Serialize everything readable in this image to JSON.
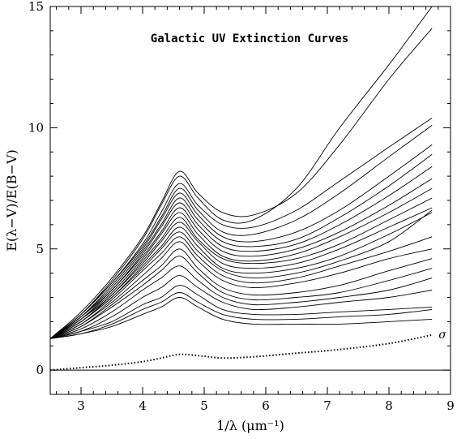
{
  "chart_data": {
    "type": "line",
    "title": "Galactic UV Extinction Curves",
    "xlabel": "1/λ (μm⁻¹)",
    "ylabel": "E(λ−V)/E(B−V)",
    "xlim": [
      2.5,
      9.0
    ],
    "ylim": [
      -1.0,
      15.0
    ],
    "x_ticks": [
      3,
      4,
      5,
      6,
      7,
      8,
      9
    ],
    "y_ticks": [
      0,
      5,
      10,
      15
    ],
    "grid": false,
    "legend": "none",
    "reference_line_y": 0,
    "x": [
      2.5,
      3.0,
      3.5,
      4.0,
      4.3,
      4.6,
      4.9,
      5.3,
      5.8,
      6.5,
      7.2,
      8.0,
      8.7
    ],
    "series": [
      {
        "values": [
          1.3,
          2.4,
          3.8,
          5.5,
          6.9,
          8.2,
          7.3,
          6.5,
          6.4,
          7.3,
          9.3,
          12.0,
          14.1
        ]
      },
      {
        "values": [
          1.3,
          2.3,
          3.7,
          5.4,
          6.8,
          8.0,
          7.1,
          6.2,
          6.2,
          7.5,
          10.0,
          12.6,
          15.0
        ]
      },
      {
        "values": [
          1.3,
          2.3,
          3.6,
          5.2,
          6.5,
          7.7,
          6.8,
          6.0,
          5.9,
          6.6,
          7.8,
          9.2,
          10.4
        ]
      },
      {
        "values": [
          1.3,
          2.3,
          3.6,
          5.1,
          6.3,
          7.5,
          6.6,
          5.7,
          5.6,
          6.2,
          7.3,
          8.8,
          10.1
        ]
      },
      {
        "values": [
          1.3,
          2.2,
          3.5,
          5.0,
          6.2,
          7.3,
          6.4,
          5.5,
          5.3,
          5.7,
          6.6,
          8.0,
          9.3
        ]
      },
      {
        "values": [
          1.3,
          2.2,
          3.4,
          4.9,
          6.0,
          7.1,
          6.2,
          5.3,
          5.1,
          5.4,
          6.3,
          7.6,
          8.9
        ]
      },
      {
        "values": [
          1.3,
          2.2,
          3.3,
          4.8,
          5.9,
          6.9,
          6.0,
          5.1,
          4.9,
          5.2,
          6.0,
          7.2,
          8.4
        ]
      },
      {
        "values": [
          1.3,
          2.1,
          3.3,
          4.7,
          5.7,
          6.7,
          5.8,
          4.9,
          4.7,
          5.0,
          5.7,
          6.8,
          7.9
        ]
      },
      {
        "values": [
          1.3,
          2.1,
          3.2,
          4.6,
          5.6,
          6.5,
          5.6,
          4.7,
          4.5,
          4.8,
          5.5,
          6.5,
          7.5
        ]
      },
      {
        "values": [
          1.3,
          2.1,
          3.1,
          4.5,
          5.4,
          6.3,
          5.4,
          4.6,
          4.4,
          4.6,
          5.2,
          6.2,
          7.1
        ]
      },
      {
        "values": [
          1.3,
          2.0,
          3.1,
          4.4,
          5.3,
          6.1,
          5.3,
          4.4,
          4.2,
          4.4,
          5.0,
          5.9,
          6.7
        ]
      },
      {
        "values": [
          1.3,
          2.0,
          3.0,
          4.3,
          5.1,
          5.9,
          5.1,
          4.2,
          4.0,
          4.2,
          4.7,
          5.6,
          6.5
        ]
      },
      {
        "values": [
          1.3,
          2.0,
          3.0,
          4.2,
          5.0,
          5.7,
          4.9,
          4.1,
          3.8,
          4.0,
          4.5,
          5.3,
          6.6
        ]
      },
      {
        "values": [
          1.3,
          1.9,
          2.9,
          4.1,
          4.8,
          5.5,
          4.7,
          3.9,
          3.6,
          3.8,
          4.3,
          4.9,
          5.5
        ]
      },
      {
        "values": [
          1.3,
          1.9,
          2.8,
          3.9,
          4.6,
          5.3,
          4.5,
          3.7,
          3.4,
          3.6,
          4.0,
          4.6,
          5.0
        ]
      },
      {
        "values": [
          1.3,
          1.8,
          2.7,
          3.7,
          4.3,
          5.0,
          4.2,
          3.4,
          3.1,
          3.2,
          3.5,
          4.1,
          4.6
        ]
      },
      {
        "values": [
          1.3,
          1.8,
          2.6,
          3.5,
          4.1,
          4.7,
          4.0,
          3.2,
          2.9,
          3.0,
          3.2,
          3.7,
          4.2
        ]
      },
      {
        "values": [
          1.3,
          1.7,
          2.4,
          3.3,
          3.8,
          4.3,
          3.7,
          3.0,
          2.7,
          2.8,
          3.0,
          3.3,
          3.8
        ]
      },
      {
        "values": [
          1.3,
          1.6,
          2.2,
          3.0,
          3.4,
          3.9,
          3.4,
          2.8,
          2.5,
          2.6,
          2.8,
          3.0,
          3.3
        ]
      },
      {
        "values": [
          1.3,
          1.6,
          2.0,
          2.7,
          3.0,
          3.5,
          3.1,
          2.5,
          2.3,
          2.3,
          2.4,
          2.5,
          2.6
        ]
      },
      {
        "values": [
          1.3,
          1.5,
          1.9,
          2.5,
          2.8,
          3.2,
          2.8,
          2.3,
          2.1,
          2.1,
          2.2,
          2.3,
          2.5
        ]
      },
      {
        "values": [
          1.3,
          1.5,
          1.8,
          2.3,
          2.6,
          3.0,
          2.6,
          2.1,
          1.9,
          1.9,
          1.9,
          2.0,
          2.1
        ]
      }
    ],
    "sigma_series": {
      "name": "σ",
      "x": [
        2.5,
        3.0,
        3.5,
        4.0,
        4.3,
        4.6,
        4.9,
        5.3,
        5.8,
        6.5,
        7.2,
        8.0,
        8.7
      ],
      "values": [
        0.0,
        0.1,
        0.2,
        0.35,
        0.5,
        0.65,
        0.6,
        0.5,
        0.55,
        0.7,
        0.85,
        1.1,
        1.45
      ]
    }
  }
}
